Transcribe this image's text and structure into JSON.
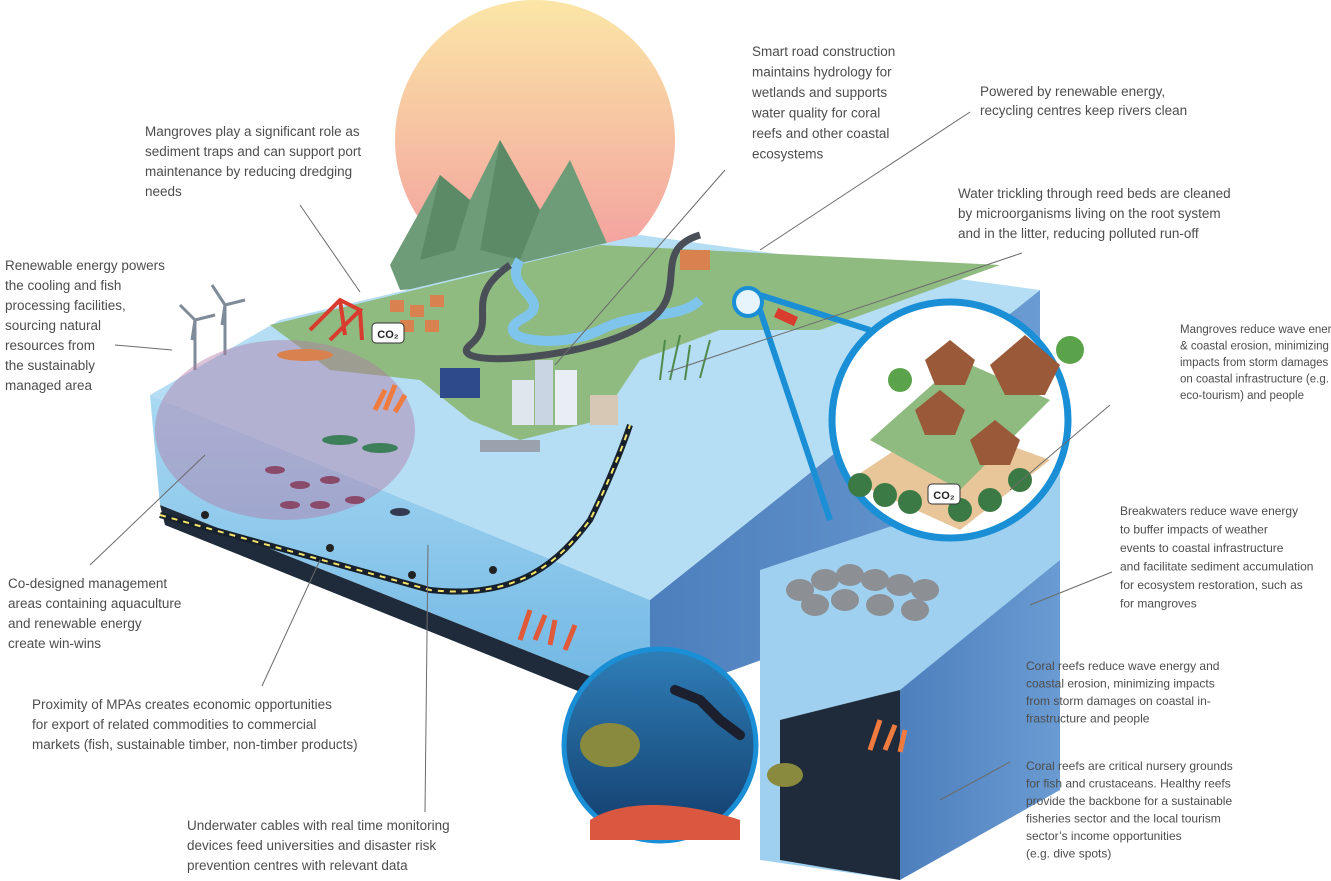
{
  "annotations": [
    {
      "lines": [
        "Smart road construction",
        "maintains hydrology for",
        "wetlands and supports",
        "water quality for coral",
        "reefs and other coastal",
        "ecosystems"
      ]
    },
    {
      "lines": [
        "Powered by renewable energy,",
        "recycling centres keep rivers clean"
      ]
    },
    {
      "lines": [
        "Mangroves play a significant role as",
        "sediment traps and can support port",
        "maintenance by reducing dredging",
        "needs"
      ]
    },
    {
      "lines": [
        "Water trickling through reed beds are cleaned",
        "by microorganisms living on the root system",
        "and in the litter, reducing polluted run-off"
      ]
    },
    {
      "lines": [
        "Renewable energy powers",
        "the cooling and fish",
        "processing facilities,",
        "sourcing natural",
        "resources from",
        "the sustainably",
        "managed area"
      ]
    },
    {
      "lines": [
        "Mangroves reduce wave energy",
        "& coastal erosion, minimizing",
        "impacts from storm damages",
        "on coastal infrastructure (e.g.",
        "eco-tourism) and people"
      ]
    },
    {
      "lines": [
        "Breakwaters reduce wave energy",
        "to buffer impacts of weather",
        "events to coastal infrastructure",
        "and facilitate sediment accumulation",
        "for ecosystem restoration, such as",
        "for mangroves"
      ]
    },
    {
      "lines": [
        "Co-designed management",
        "areas containing aquaculture",
        "and renewable energy",
        "create win-wins"
      ]
    },
    {
      "lines": [
        "Coral reefs reduce wave energy and",
        "coastal erosion, minimizing impacts",
        "from storm damages on coastal in-",
        "frastructure and people"
      ]
    },
    {
      "lines": [
        "Proximity of MPAs creates economic opportunities",
        "for export of related commodities to commercial",
        "markets (fish, sustainable timber, non-timber products)"
      ]
    },
    {
      "lines": [
        "Coral reefs are critical nursery grounds",
        "for fish and crustaceans. Healthy reefs",
        "provide the backbone for a sustainable",
        "fisheries sector and the local tourism",
        "sector’s income opportunities",
        "(e.g. dive spots)"
      ]
    },
    {
      "lines": [
        "Underwater cables with real time monitoring",
        "devices feed universities and disaster risk",
        "prevention centres with relevant data"
      ]
    }
  ],
  "icon_labels": [
    "CO₂",
    "CO₂"
  ]
}
